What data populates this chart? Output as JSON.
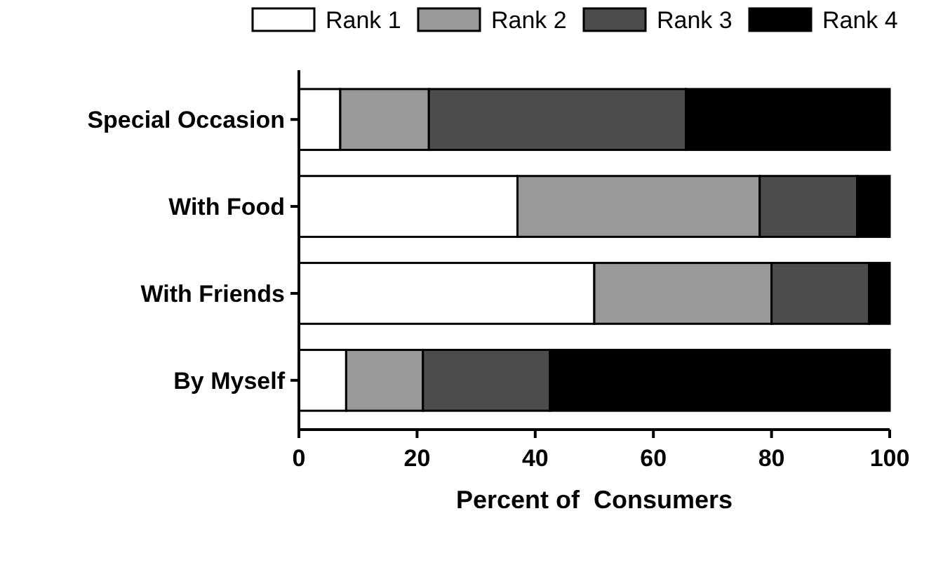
{
  "chart_data": {
    "type": "bar",
    "orientation": "horizontal",
    "stacked": true,
    "xlabel": "Percent of  Consumers",
    "categories": [
      "Special Occasion",
      "With Food",
      "With Friends",
      "By Myself"
    ],
    "xlim": [
      0,
      100
    ],
    "xticks": [
      0,
      20,
      40,
      60,
      80,
      100
    ],
    "legend": "top",
    "series": [
      {
        "name": "Rank 1",
        "color": "#ffffff",
        "values": [
          7,
          37,
          50,
          8
        ]
      },
      {
        "name": "Rank 2",
        "color": "#999999",
        "values": [
          15,
          41,
          30,
          13
        ]
      },
      {
        "name": "Rank 3",
        "color": "#4d4d4d",
        "values": [
          43.5,
          16.5,
          16.5,
          21.5
        ]
      },
      {
        "name": "Rank 4",
        "color": "#000000",
        "values": [
          34.5,
          5.5,
          3.5,
          57.5
        ]
      }
    ]
  }
}
